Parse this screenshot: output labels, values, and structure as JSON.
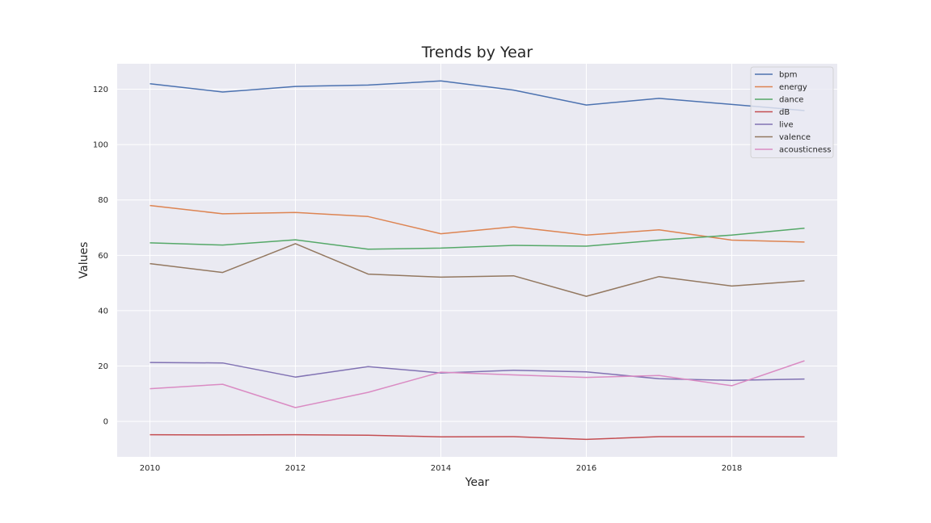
{
  "chart_data": {
    "type": "line",
    "title": "Trends by Year",
    "xlabel": "Year",
    "ylabel": "Values",
    "x": [
      2010,
      2011,
      2012,
      2013,
      2014,
      2015,
      2016,
      2017,
      2018,
      2019
    ],
    "xlim": [
      2009.55,
      2019.45
    ],
    "ylim": [
      -12.8,
      129.2
    ],
    "xticks": [
      2010,
      2012,
      2014,
      2016,
      2018
    ],
    "yticks": [
      0,
      20,
      40,
      60,
      80,
      100,
      120
    ],
    "grid": true,
    "legend_position": "top-right",
    "background": "#eaeaf2",
    "series": [
      {
        "name": "bpm",
        "color": "#4c72b0",
        "values": [
          122.0,
          119.0,
          121.0,
          121.5,
          123.0,
          119.7,
          114.3,
          116.7,
          114.5,
          112.3
        ]
      },
      {
        "name": "energy",
        "color": "#dd8452",
        "values": [
          78.0,
          75.0,
          75.5,
          74.0,
          67.8,
          70.3,
          67.3,
          69.2,
          65.5,
          64.8
        ]
      },
      {
        "name": "dance",
        "color": "#55a868",
        "values": [
          64.5,
          63.7,
          65.6,
          62.2,
          62.6,
          63.6,
          63.3,
          65.5,
          67.3,
          69.8
        ]
      },
      {
        "name": "dB",
        "color": "#c44e52",
        "values": [
          -4.8,
          -4.9,
          -4.8,
          -5.0,
          -5.6,
          -5.5,
          -6.5,
          -5.5,
          -5.5,
          -5.6
        ]
      },
      {
        "name": "live",
        "color": "#8172b3",
        "values": [
          21.3,
          21.1,
          16.0,
          19.8,
          17.5,
          18.5,
          17.9,
          15.4,
          14.8,
          15.3
        ]
      },
      {
        "name": "valence",
        "color": "#937860",
        "values": [
          57.0,
          53.8,
          64.2,
          53.2,
          52.1,
          52.6,
          45.2,
          52.3,
          48.9,
          50.8
        ]
      },
      {
        "name": "acousticness",
        "color": "#da8bc3",
        "values": [
          11.8,
          13.4,
          5.0,
          10.5,
          17.8,
          16.8,
          15.9,
          16.6,
          12.9,
          21.9
        ]
      }
    ]
  }
}
